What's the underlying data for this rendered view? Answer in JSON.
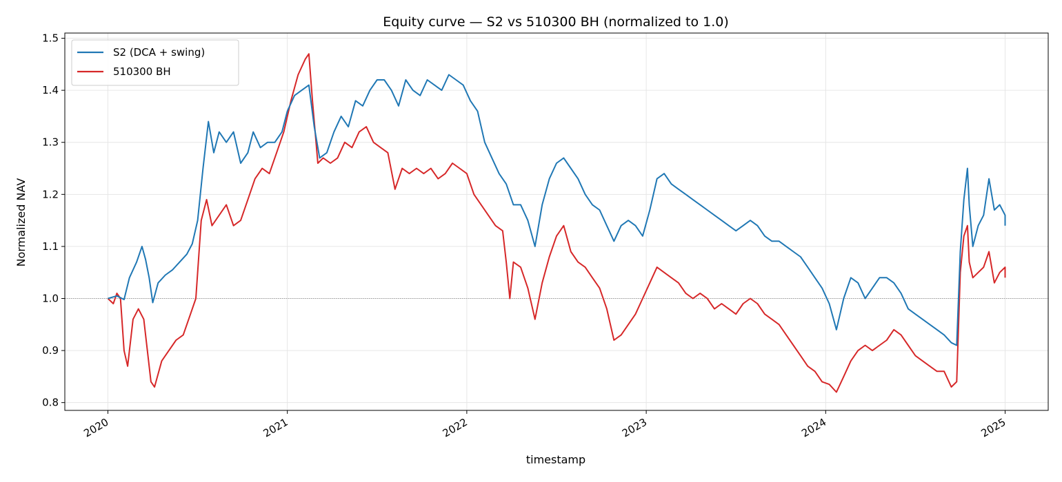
{
  "chart_data": {
    "type": "line",
    "title": "Equity curve — S2 vs 510300 BH (normalized to 1.0)",
    "xlabel": "timestamp",
    "ylabel": "Normalized NAV",
    "xlim": [
      2019.76,
      2025.24
    ],
    "ylim": [
      0.785,
      1.51
    ],
    "x_ticks": [
      2020,
      2021,
      2022,
      2023,
      2024,
      2025
    ],
    "x_tick_labels": [
      "2020",
      "2021",
      "2022",
      "2023",
      "2024",
      "2025"
    ],
    "y_ticks": [
      0.8,
      0.9,
      1.0,
      1.1,
      1.2,
      1.3,
      1.4,
      1.5
    ],
    "y_tick_labels": [
      "0.8",
      "0.9",
      "1.0",
      "1.1",
      "1.2",
      "1.3",
      "1.4",
      "1.5"
    ],
    "reference_line": 1.0,
    "grid": true,
    "legend_position": "top-left",
    "series": [
      {
        "name": "S2 (DCA + swing)",
        "color": "#1f77b4",
        "points": [
          [
            2020.0,
            1.0
          ],
          [
            2020.05,
            1.005
          ],
          [
            2020.09,
            0.998
          ],
          [
            2020.12,
            1.04
          ],
          [
            2020.16,
            1.07
          ],
          [
            2020.19,
            1.1
          ],
          [
            2020.21,
            1.075
          ],
          [
            2020.23,
            1.04
          ],
          [
            2020.25,
            0.992
          ],
          [
            2020.28,
            1.03
          ],
          [
            2020.32,
            1.045
          ],
          [
            2020.36,
            1.055
          ],
          [
            2020.4,
            1.07
          ],
          [
            2020.44,
            1.085
          ],
          [
            2020.47,
            1.105
          ],
          [
            2020.5,
            1.15
          ],
          [
            2020.53,
            1.25
          ],
          [
            2020.56,
            1.34
          ],
          [
            2020.59,
            1.28
          ],
          [
            2020.62,
            1.32
          ],
          [
            2020.66,
            1.3
          ],
          [
            2020.7,
            1.32
          ],
          [
            2020.74,
            1.26
          ],
          [
            2020.78,
            1.28
          ],
          [
            2020.81,
            1.32
          ],
          [
            2020.85,
            1.29
          ],
          [
            2020.89,
            1.3
          ],
          [
            2020.93,
            1.3
          ],
          [
            2020.97,
            1.32
          ],
          [
            2021.0,
            1.36
          ],
          [
            2021.04,
            1.39
          ],
          [
            2021.08,
            1.4
          ],
          [
            2021.12,
            1.41
          ],
          [
            2021.15,
            1.33
          ],
          [
            2021.18,
            1.27
          ],
          [
            2021.22,
            1.28
          ],
          [
            2021.26,
            1.32
          ],
          [
            2021.3,
            1.35
          ],
          [
            2021.34,
            1.33
          ],
          [
            2021.38,
            1.38
          ],
          [
            2021.42,
            1.37
          ],
          [
            2021.46,
            1.4
          ],
          [
            2021.5,
            1.42
          ],
          [
            2021.54,
            1.42
          ],
          [
            2021.58,
            1.4
          ],
          [
            2021.62,
            1.37
          ],
          [
            2021.66,
            1.42
          ],
          [
            2021.7,
            1.4
          ],
          [
            2021.74,
            1.39
          ],
          [
            2021.78,
            1.42
          ],
          [
            2021.82,
            1.41
          ],
          [
            2021.86,
            1.4
          ],
          [
            2021.9,
            1.43
          ],
          [
            2021.94,
            1.42
          ],
          [
            2021.98,
            1.41
          ],
          [
            2022.02,
            1.38
          ],
          [
            2022.06,
            1.36
          ],
          [
            2022.1,
            1.3
          ],
          [
            2022.14,
            1.27
          ],
          [
            2022.18,
            1.24
          ],
          [
            2022.22,
            1.22
          ],
          [
            2022.26,
            1.18
          ],
          [
            2022.3,
            1.18
          ],
          [
            2022.34,
            1.15
          ],
          [
            2022.38,
            1.1
          ],
          [
            2022.42,
            1.18
          ],
          [
            2022.46,
            1.23
          ],
          [
            2022.5,
            1.26
          ],
          [
            2022.54,
            1.27
          ],
          [
            2022.58,
            1.25
          ],
          [
            2022.62,
            1.23
          ],
          [
            2022.66,
            1.2
          ],
          [
            2022.7,
            1.18
          ],
          [
            2022.74,
            1.17
          ],
          [
            2022.78,
            1.14
          ],
          [
            2022.82,
            1.11
          ],
          [
            2022.86,
            1.14
          ],
          [
            2022.9,
            1.15
          ],
          [
            2022.94,
            1.14
          ],
          [
            2022.98,
            1.12
          ],
          [
            2023.02,
            1.17
          ],
          [
            2023.06,
            1.23
          ],
          [
            2023.1,
            1.24
          ],
          [
            2023.14,
            1.22
          ],
          [
            2023.18,
            1.21
          ],
          [
            2023.22,
            1.2
          ],
          [
            2023.26,
            1.19
          ],
          [
            2023.3,
            1.18
          ],
          [
            2023.34,
            1.17
          ],
          [
            2023.38,
            1.16
          ],
          [
            2023.42,
            1.15
          ],
          [
            2023.46,
            1.14
          ],
          [
            2023.5,
            1.13
          ],
          [
            2023.54,
            1.14
          ],
          [
            2023.58,
            1.15
          ],
          [
            2023.62,
            1.14
          ],
          [
            2023.66,
            1.12
          ],
          [
            2023.7,
            1.11
          ],
          [
            2023.74,
            1.11
          ],
          [
            2023.78,
            1.1
          ],
          [
            2023.82,
            1.09
          ],
          [
            2023.86,
            1.08
          ],
          [
            2023.9,
            1.06
          ],
          [
            2023.94,
            1.04
          ],
          [
            2023.98,
            1.02
          ],
          [
            2024.02,
            0.99
          ],
          [
            2024.06,
            0.94
          ],
          [
            2024.1,
            1.0
          ],
          [
            2024.14,
            1.04
          ],
          [
            2024.18,
            1.03
          ],
          [
            2024.22,
            1.0
          ],
          [
            2024.26,
            1.02
          ],
          [
            2024.3,
            1.04
          ],
          [
            2024.34,
            1.04
          ],
          [
            2024.38,
            1.03
          ],
          [
            2024.42,
            1.01
          ],
          [
            2024.46,
            0.98
          ],
          [
            2024.5,
            0.97
          ],
          [
            2024.54,
            0.96
          ],
          [
            2024.58,
            0.95
          ],
          [
            2024.62,
            0.94
          ],
          [
            2024.66,
            0.93
          ],
          [
            2024.7,
            0.915
          ],
          [
            2024.73,
            0.91
          ],
          [
            2024.75,
            1.09
          ],
          [
            2024.77,
            1.19
          ],
          [
            2024.79,
            1.25
          ],
          [
            2024.8,
            1.18
          ],
          [
            2024.82,
            1.1
          ],
          [
            2024.85,
            1.14
          ],
          [
            2024.88,
            1.16
          ],
          [
            2024.91,
            1.23
          ],
          [
            2024.94,
            1.17
          ],
          [
            2024.97,
            1.18
          ],
          [
            2025.0,
            1.16
          ],
          [
            2025.0,
            1.14
          ]
        ]
      },
      {
        "name": "510300 BH",
        "color": "#d62728",
        "points": [
          [
            2020.0,
            1.0
          ],
          [
            2020.03,
            0.99
          ],
          [
            2020.05,
            1.01
          ],
          [
            2020.07,
            1.0
          ],
          [
            2020.09,
            0.9
          ],
          [
            2020.11,
            0.87
          ],
          [
            2020.14,
            0.96
          ],
          [
            2020.17,
            0.98
          ],
          [
            2020.2,
            0.96
          ],
          [
            2020.22,
            0.9
          ],
          [
            2020.24,
            0.84
          ],
          [
            2020.26,
            0.83
          ],
          [
            2020.3,
            0.88
          ],
          [
            2020.34,
            0.9
          ],
          [
            2020.38,
            0.92
          ],
          [
            2020.42,
            0.93
          ],
          [
            2020.46,
            0.97
          ],
          [
            2020.49,
            1.0
          ],
          [
            2020.52,
            1.15
          ],
          [
            2020.55,
            1.19
          ],
          [
            2020.58,
            1.14
          ],
          [
            2020.62,
            1.16
          ],
          [
            2020.66,
            1.18
          ],
          [
            2020.7,
            1.14
          ],
          [
            2020.74,
            1.15
          ],
          [
            2020.78,
            1.19
          ],
          [
            2020.82,
            1.23
          ],
          [
            2020.86,
            1.25
          ],
          [
            2020.9,
            1.24
          ],
          [
            2020.94,
            1.28
          ],
          [
            2020.98,
            1.32
          ],
          [
            2021.02,
            1.38
          ],
          [
            2021.06,
            1.43
          ],
          [
            2021.1,
            1.46
          ],
          [
            2021.12,
            1.47
          ],
          [
            2021.14,
            1.38
          ],
          [
            2021.17,
            1.26
          ],
          [
            2021.2,
            1.27
          ],
          [
            2021.24,
            1.26
          ],
          [
            2021.28,
            1.27
          ],
          [
            2021.32,
            1.3
          ],
          [
            2021.36,
            1.29
          ],
          [
            2021.4,
            1.32
          ],
          [
            2021.44,
            1.33
          ],
          [
            2021.48,
            1.3
          ],
          [
            2021.52,
            1.29
          ],
          [
            2021.56,
            1.28
          ],
          [
            2021.6,
            1.21
          ],
          [
            2021.64,
            1.25
          ],
          [
            2021.68,
            1.24
          ],
          [
            2021.72,
            1.25
          ],
          [
            2021.76,
            1.24
          ],
          [
            2021.8,
            1.25
          ],
          [
            2021.84,
            1.23
          ],
          [
            2021.88,
            1.24
          ],
          [
            2021.92,
            1.26
          ],
          [
            2021.96,
            1.25
          ],
          [
            2022.0,
            1.24
          ],
          [
            2022.04,
            1.2
          ],
          [
            2022.08,
            1.18
          ],
          [
            2022.12,
            1.16
          ],
          [
            2022.16,
            1.14
          ],
          [
            2022.2,
            1.13
          ],
          [
            2022.22,
            1.07
          ],
          [
            2022.24,
            1.0
          ],
          [
            2022.26,
            1.07
          ],
          [
            2022.3,
            1.06
          ],
          [
            2022.34,
            1.02
          ],
          [
            2022.38,
            0.96
          ],
          [
            2022.42,
            1.03
          ],
          [
            2022.46,
            1.08
          ],
          [
            2022.5,
            1.12
          ],
          [
            2022.54,
            1.14
          ],
          [
            2022.58,
            1.09
          ],
          [
            2022.62,
            1.07
          ],
          [
            2022.66,
            1.06
          ],
          [
            2022.7,
            1.04
          ],
          [
            2022.74,
            1.02
          ],
          [
            2022.78,
            0.98
          ],
          [
            2022.82,
            0.92
          ],
          [
            2022.86,
            0.93
          ],
          [
            2022.9,
            0.95
          ],
          [
            2022.94,
            0.97
          ],
          [
            2022.98,
            1.0
          ],
          [
            2023.02,
            1.03
          ],
          [
            2023.06,
            1.06
          ],
          [
            2023.1,
            1.05
          ],
          [
            2023.14,
            1.04
          ],
          [
            2023.18,
            1.03
          ],
          [
            2023.22,
            1.01
          ],
          [
            2023.26,
            1.0
          ],
          [
            2023.3,
            1.01
          ],
          [
            2023.34,
            1.0
          ],
          [
            2023.38,
            0.98
          ],
          [
            2023.42,
            0.99
          ],
          [
            2023.46,
            0.98
          ],
          [
            2023.5,
            0.97
          ],
          [
            2023.54,
            0.99
          ],
          [
            2023.58,
            1.0
          ],
          [
            2023.62,
            0.99
          ],
          [
            2023.66,
            0.97
          ],
          [
            2023.7,
            0.96
          ],
          [
            2023.74,
            0.95
          ],
          [
            2023.78,
            0.93
          ],
          [
            2023.82,
            0.91
          ],
          [
            2023.86,
            0.89
          ],
          [
            2023.9,
            0.87
          ],
          [
            2023.94,
            0.86
          ],
          [
            2023.98,
            0.84
          ],
          [
            2024.02,
            0.835
          ],
          [
            2024.06,
            0.82
          ],
          [
            2024.1,
            0.85
          ],
          [
            2024.14,
            0.88
          ],
          [
            2024.18,
            0.9
          ],
          [
            2024.22,
            0.91
          ],
          [
            2024.26,
            0.9
          ],
          [
            2024.3,
            0.91
          ],
          [
            2024.34,
            0.92
          ],
          [
            2024.38,
            0.94
          ],
          [
            2024.42,
            0.93
          ],
          [
            2024.46,
            0.91
          ],
          [
            2024.5,
            0.89
          ],
          [
            2024.54,
            0.88
          ],
          [
            2024.58,
            0.87
          ],
          [
            2024.62,
            0.86
          ],
          [
            2024.66,
            0.86
          ],
          [
            2024.7,
            0.83
          ],
          [
            2024.73,
            0.84
          ],
          [
            2024.75,
            1.05
          ],
          [
            2024.77,
            1.12
          ],
          [
            2024.79,
            1.14
          ],
          [
            2024.8,
            1.07
          ],
          [
            2024.82,
            1.04
          ],
          [
            2024.85,
            1.05
          ],
          [
            2024.88,
            1.06
          ],
          [
            2024.91,
            1.09
          ],
          [
            2024.94,
            1.03
          ],
          [
            2024.97,
            1.05
          ],
          [
            2025.0,
            1.06
          ],
          [
            2025.0,
            1.04
          ]
        ]
      }
    ]
  }
}
